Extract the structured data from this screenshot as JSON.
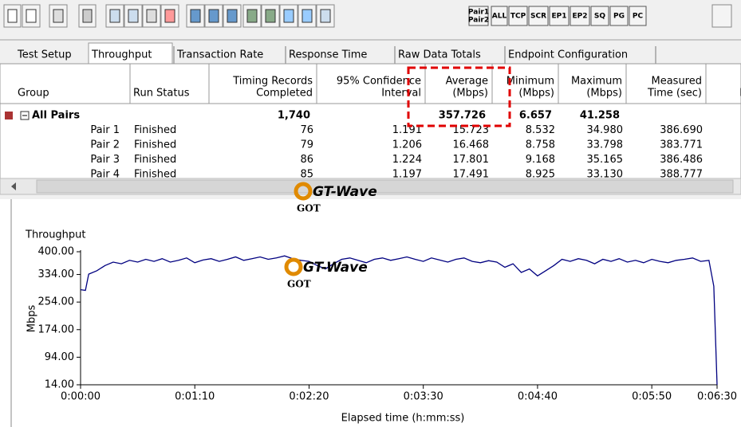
{
  "toolbar": {
    "buttons": [
      [
        "Pair1",
        "Pair2"
      ],
      "ALL",
      "TCP",
      "SCR",
      "EP1",
      "EP2",
      "SQ",
      "PG",
      "PC"
    ]
  },
  "tabs": [
    "Test Setup",
    "Throughput",
    "Transaction Rate",
    "Response Time",
    "Raw Data Totals",
    "Endpoint Configuration"
  ],
  "watermark": {
    "name": "GT-Wave",
    "sub": "GOT"
  },
  "table": {
    "headers": [
      [
        "Group"
      ],
      [
        "Run Status"
      ],
      [
        "Timing Records",
        "Completed"
      ],
      [
        "95% Confidence",
        "Interval"
      ],
      [
        "Average",
        "(Mbps)"
      ],
      [
        "Minimum",
        "(Mbps)"
      ],
      [
        "Maximum",
        "(Mbps)"
      ],
      [
        "Measured",
        "Time (sec)"
      ],
      [
        "Re",
        "Prec"
      ]
    ],
    "rows": [
      [
        "All Pairs",
        null,
        "1,740",
        null,
        "357.726",
        "6.657",
        "41.258",
        null
      ],
      [
        "Pair 1",
        "Finished",
        "76",
        "1.191",
        "15.723",
        "8.532",
        "34.980",
        "386.690"
      ],
      [
        "Pair 2",
        "Finished",
        "79",
        "1.206",
        "16.468",
        "8.758",
        "33.798",
        "383.771"
      ],
      [
        "Pair 3",
        "Finished",
        "86",
        "1.224",
        "17.801",
        "9.168",
        "35.165",
        "386.486"
      ],
      [
        "Pair 4",
        "Finished",
        "85",
        "1.197",
        "17.491",
        "8.925",
        "33.130",
        "388.777"
      ]
    ]
  },
  "chart_data": {
    "type": "line",
    "title": "Throughput",
    "x_label": "Elapsed time (h:mm:ss)",
    "y_label": "Mbps",
    "xlim": [
      0,
      390
    ],
    "ylim": [
      14,
      400
    ],
    "xticks": [
      {
        "value": 0,
        "label": "0:00:00"
      },
      {
        "value": 70,
        "label": "0:01:10"
      },
      {
        "value": 140,
        "label": "0:02:20"
      },
      {
        "value": 210,
        "label": "0:03:30"
      },
      {
        "value": 280,
        "label": "0:04:40"
      },
      {
        "value": 350,
        "label": "0:05:50"
      },
      {
        "value": 390,
        "label": "0:06:30"
      }
    ],
    "yticks": [
      {
        "value": 14,
        "label": "14.00"
      },
      {
        "value": 94,
        "label": "94.00"
      },
      {
        "value": 174,
        "label": "174.00"
      },
      {
        "value": 254,
        "label": "254.00"
      },
      {
        "value": 334,
        "label": "334.00"
      },
      {
        "value": 400,
        "label": "400.00"
      }
    ],
    "series": [
      {
        "name": "All Pairs",
        "color": "#000080",
        "x": [
          0,
          3,
          5,
          10,
          15,
          20,
          25,
          30,
          35,
          40,
          45,
          50,
          55,
          60,
          65,
          70,
          75,
          80,
          85,
          90,
          95,
          100,
          105,
          110,
          115,
          120,
          125,
          130,
          135,
          140,
          145,
          150,
          155,
          160,
          165,
          170,
          175,
          180,
          185,
          190,
          195,
          200,
          205,
          210,
          215,
          220,
          225,
          230,
          235,
          240,
          245,
          250,
          255,
          260,
          265,
          270,
          275,
          280,
          285,
          290,
          295,
          300,
          305,
          310,
          315,
          320,
          325,
          330,
          335,
          340,
          345,
          350,
          355,
          360,
          365,
          370,
          375,
          380,
          385,
          388,
          390
        ],
        "values": [
          290,
          288,
          335,
          345,
          360,
          370,
          365,
          375,
          370,
          378,
          372,
          380,
          370,
          375,
          382,
          368,
          376,
          380,
          372,
          378,
          385,
          375,
          380,
          385,
          378,
          382,
          388,
          380,
          375,
          372,
          360,
          350,
          365,
          378,
          382,
          375,
          368,
          378,
          382,
          375,
          380,
          385,
          378,
          372,
          382,
          376,
          370,
          378,
          382,
          372,
          368,
          374,
          370,
          355,
          365,
          340,
          350,
          330,
          345,
          360,
          378,
          372,
          380,
          375,
          365,
          378,
          372,
          380,
          370,
          375,
          368,
          378,
          372,
          368,
          375,
          378,
          382,
          372,
          375,
          300,
          14
        ]
      }
    ]
  }
}
